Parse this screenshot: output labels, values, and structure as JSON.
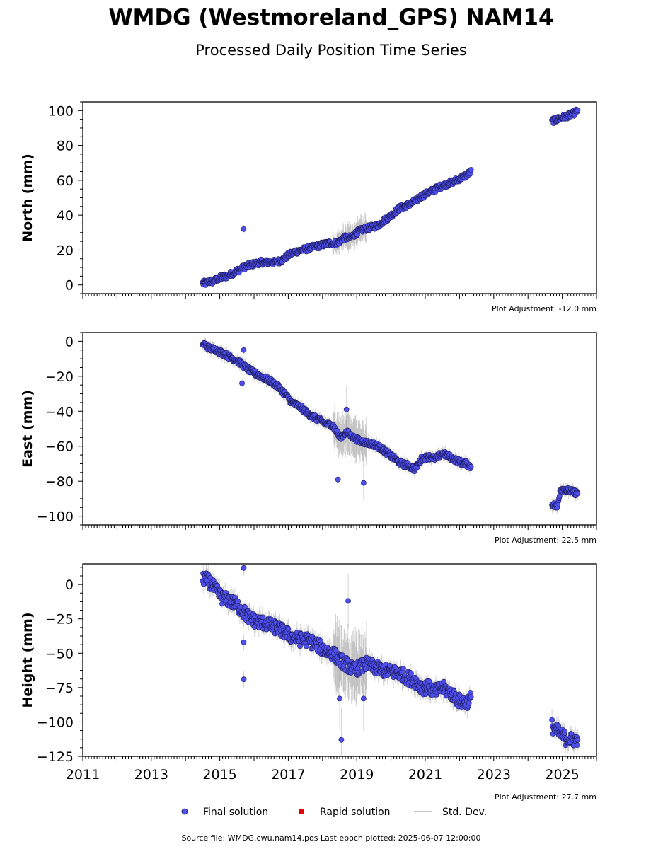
{
  "figure": {
    "title": "WMDG (Westmoreland_GPS) NAM14",
    "subtitle": "Processed Daily Position Time Series",
    "source_note": "Source file: WMDG.cwu.nam14.pos  Last epoch plotted: 2025-06-07 12:00:00",
    "colors": {
      "final": "#4f4ff0",
      "final_edge": "#1a1a55",
      "rapid": "#e00000",
      "stddev": "#b0b0b0"
    },
    "legend": {
      "final": "Final solution",
      "rapid": "Rapid solution",
      "stddev": "Std. Dev."
    }
  },
  "chart_data": [
    {
      "type": "scatter",
      "ylabel": "North (mm)",
      "xlim": [
        2011,
        2026
      ],
      "ylim": [
        -5,
        105
      ],
      "yticks": [
        0,
        20,
        40,
        60,
        80,
        100
      ],
      "xticks": [
        "2011",
        "2013",
        "2015",
        "2017",
        "2019",
        "2021",
        "2023",
        "2025"
      ],
      "xtick_labels_shown": false,
      "adjustment": "Plot Adjustment: -12.0 mm",
      "outliers": [
        [
          2015.7,
          32
        ]
      ],
      "series": [
        {
          "points": [
            [
              2014.5,
              1
            ],
            [
              2014.6,
              1
            ],
            [
              2014.7,
              2
            ],
            [
              2014.8,
              2
            ],
            [
              2014.9,
              3
            ],
            [
              2015.0,
              4
            ],
            [
              2015.2,
              5
            ],
            [
              2015.4,
              7
            ],
            [
              2015.6,
              9
            ],
            [
              2015.8,
              11
            ],
            [
              2016.0,
              12
            ],
            [
              2016.2,
              13
            ],
            [
              2016.4,
              13
            ],
            [
              2016.6,
              13
            ],
            [
              2016.8,
              14
            ],
            [
              2017.0,
              17
            ],
            [
              2017.2,
              19
            ],
            [
              2017.4,
              20
            ],
            [
              2017.6,
              21
            ],
            [
              2017.8,
              22
            ],
            [
              2018.0,
              23
            ],
            [
              2018.2,
              24
            ],
            [
              2018.4,
              24
            ],
            [
              2018.5,
              25
            ],
            [
              2018.6,
              27
            ],
            [
              2018.8,
              27
            ],
            [
              2019.0,
              30
            ],
            [
              2019.2,
              32
            ],
            [
              2019.4,
              33
            ],
            [
              2019.6,
              34
            ],
            [
              2019.8,
              37
            ],
            [
              2019.95,
              39
            ],
            [
              2020.25,
              44
            ],
            [
              2020.5,
              46
            ],
            [
              2020.7,
              48
            ],
            [
              2020.9,
              51
            ],
            [
              2021.1,
              53
            ],
            [
              2021.3,
              55
            ],
            [
              2021.5,
              57
            ],
            [
              2021.8,
              59
            ],
            [
              2022.0,
              61
            ],
            [
              2022.2,
              63
            ],
            [
              2022.35,
              65
            ],
            [
              2024.7,
              94
            ],
            [
              2024.85,
              95
            ],
            [
              2025.0,
              96
            ],
            [
              2025.15,
              97
            ],
            [
              2025.3,
              98
            ],
            [
              2025.45,
              100
            ]
          ],
          "noise": 1.6,
          "stddev": 1.5
        }
      ]
    },
    {
      "type": "scatter",
      "ylabel": "East (mm)",
      "xlim": [
        2011,
        2026
      ],
      "ylim": [
        -105,
        5
      ],
      "yticks": [
        -100,
        -80,
        -60,
        -40,
        -20,
        0
      ],
      "xticks": [
        "2011",
        "2013",
        "2015",
        "2017",
        "2019",
        "2021",
        "2023",
        "2025"
      ],
      "xtick_labels_shown": false,
      "adjustment": "Plot Adjustment: 22.5 mm",
      "outliers": [
        [
          2015.7,
          -5
        ],
        [
          2015.65,
          -24
        ],
        [
          2018.45,
          -79
        ],
        [
          2019.2,
          -81
        ],
        [
          2018.7,
          -39
        ]
      ],
      "series": [
        {
          "points": [
            [
              2014.5,
              -1
            ],
            [
              2014.7,
              -4
            ],
            [
              2014.9,
              -5
            ],
            [
              2015.1,
              -7
            ],
            [
              2015.3,
              -9
            ],
            [
              2015.5,
              -11
            ],
            [
              2015.7,
              -14
            ],
            [
              2015.9,
              -17
            ],
            [
              2016.1,
              -19
            ],
            [
              2016.3,
              -21
            ],
            [
              2016.5,
              -23
            ],
            [
              2016.7,
              -26
            ],
            [
              2016.9,
              -30
            ],
            [
              2017.1,
              -35
            ],
            [
              2017.3,
              -37
            ],
            [
              2017.5,
              -40
            ],
            [
              2017.7,
              -43
            ],
            [
              2017.9,
              -45
            ],
            [
              2018.1,
              -47
            ],
            [
              2018.3,
              -48
            ],
            [
              2018.5,
              -55
            ],
            [
              2018.7,
              -52
            ],
            [
              2018.9,
              -55
            ],
            [
              2019.1,
              -57
            ],
            [
              2019.3,
              -58
            ],
            [
              2019.5,
              -59
            ],
            [
              2019.7,
              -61
            ],
            [
              2019.9,
              -64
            ],
            [
              2020.3,
              -70
            ],
            [
              2020.5,
              -71
            ],
            [
              2020.7,
              -73
            ],
            [
              2020.9,
              -67
            ],
            [
              2021.1,
              -66
            ],
            [
              2021.3,
              -67
            ],
            [
              2021.5,
              -64
            ],
            [
              2021.8,
              -67
            ],
            [
              2022.0,
              -69
            ],
            [
              2022.2,
              -70
            ],
            [
              2022.35,
              -72
            ],
            [
              2024.7,
              -93
            ],
            [
              2024.85,
              -95
            ],
            [
              2024.95,
              -84
            ],
            [
              2025.1,
              -85
            ],
            [
              2025.3,
              -86
            ],
            [
              2025.45,
              -87
            ]
          ],
          "noise": 1.6,
          "stddev": 2.5
        }
      ]
    },
    {
      "type": "scatter",
      "ylabel": "Height (mm)",
      "xlim": [
        2011,
        2026
      ],
      "ylim": [
        -125,
        15
      ],
      "yticks": [
        -125,
        -100,
        -75,
        -50,
        -25,
        0
      ],
      "xticks": [
        "2011",
        "2013",
        "2015",
        "2017",
        "2019",
        "2021",
        "2023",
        "2025"
      ],
      "xtick_labels_shown": true,
      "adjustment": "Plot Adjustment: 27.7 mm",
      "outliers": [
        [
          2015.7,
          -69
        ],
        [
          2015.7,
          12
        ],
        [
          2018.55,
          -113
        ],
        [
          2018.5,
          -83
        ],
        [
          2018.75,
          -12
        ],
        [
          2019.2,
          -83
        ],
        [
          2015.7,
          -42
        ]
      ],
      "series": [
        {
          "points": [
            [
              2014.5,
              5
            ],
            [
              2014.7,
              2
            ],
            [
              2014.9,
              -5
            ],
            [
              2015.1,
              -10
            ],
            [
              2015.3,
              -12
            ],
            [
              2015.5,
              -15
            ],
            [
              2015.7,
              -20
            ],
            [
              2015.9,
              -25
            ],
            [
              2016.1,
              -27
            ],
            [
              2016.3,
              -28
            ],
            [
              2016.5,
              -30
            ],
            [
              2016.7,
              -32
            ],
            [
              2016.9,
              -35
            ],
            [
              2017.1,
              -38
            ],
            [
              2017.3,
              -40
            ],
            [
              2017.5,
              -40
            ],
            [
              2017.7,
              -42
            ],
            [
              2017.9,
              -45
            ],
            [
              2018.1,
              -48
            ],
            [
              2018.3,
              -50
            ],
            [
              2018.5,
              -55
            ],
            [
              2018.7,
              -58
            ],
            [
              2018.9,
              -62
            ],
            [
              2019.1,
              -60
            ],
            [
              2019.3,
              -58
            ],
            [
              2019.5,
              -60
            ],
            [
              2019.7,
              -62
            ],
            [
              2019.9,
              -63
            ],
            [
              2020.3,
              -65
            ],
            [
              2020.5,
              -68
            ],
            [
              2020.7,
              -70
            ],
            [
              2020.9,
              -75
            ],
            [
              2021.1,
              -75
            ],
            [
              2021.3,
              -78
            ],
            [
              2021.5,
              -75
            ],
            [
              2021.8,
              -80
            ],
            [
              2022.0,
              -85
            ],
            [
              2022.2,
              -86
            ],
            [
              2022.35,
              -82
            ],
            [
              2024.7,
              -103
            ],
            [
              2024.9,
              -108
            ],
            [
              2025.1,
              -112
            ],
            [
              2025.3,
              -113
            ],
            [
              2025.45,
              -113
            ]
          ],
          "noise": 5,
          "stddev": 5
        }
      ]
    }
  ]
}
